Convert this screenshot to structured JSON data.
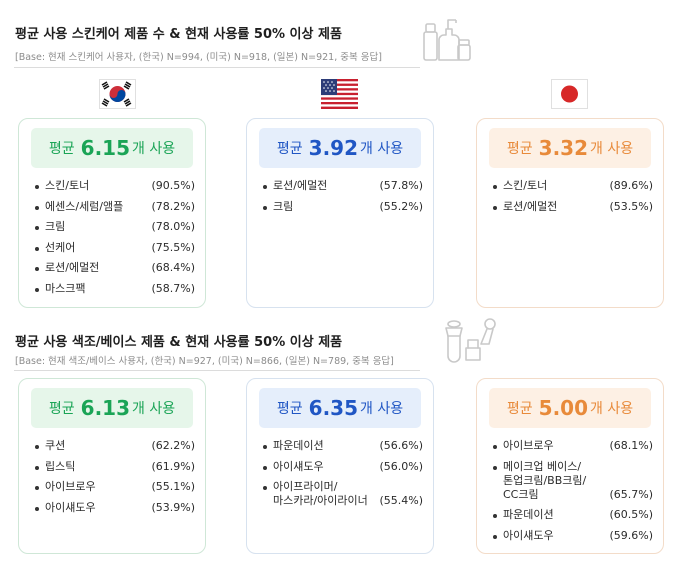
{
  "skincare": {
    "title": "평균 사용 스킨케어 제품 수 & 현재 사용률 50% 이상 제품",
    "base": "[Base: 현재 스킨케어 사용자, (한국) N=994, (미국) N=918, (일본) N=921, 중복 응답]",
    "korea": {
      "avg_prefix": "평균",
      "avg_value": "6.15",
      "avg_suffix": "개 사용",
      "items": [
        {
          "label": "스킨/토너",
          "pct": "(90.5%)"
        },
        {
          "label": "에센스/세럼/앰플",
          "pct": "(78.2%)"
        },
        {
          "label": "크림",
          "pct": "(78.0%)"
        },
        {
          "label": "선케어",
          "pct": "(75.5%)"
        },
        {
          "label": "로션/에멀전",
          "pct": "(68.4%)"
        },
        {
          "label": "마스크팩",
          "pct": "(58.7%)"
        }
      ]
    },
    "usa": {
      "avg_prefix": "평균",
      "avg_value": "3.92",
      "avg_suffix": "개 사용",
      "items": [
        {
          "label": "로션/에멀전",
          "pct": "(57.8%)"
        },
        {
          "label": "크림",
          "pct": "(55.2%)"
        }
      ]
    },
    "japan": {
      "avg_prefix": "평균",
      "avg_value": "3.32",
      "avg_suffix": "개 사용",
      "items": [
        {
          "label": "스킨/토너",
          "pct": "(89.6%)"
        },
        {
          "label": "로션/에멀전",
          "pct": "(53.5%)"
        }
      ]
    }
  },
  "makeup": {
    "title": "평균 사용 색조/베이스 제품 & 현재 사용률 50% 이상 제품",
    "base": "[Base: 현재 색조/베이스 사용자, (한국) N=927, (미국) N=866, (일본) N=789, 중복 응답]",
    "korea": {
      "avg_prefix": "평균",
      "avg_value": "6.13",
      "avg_suffix": "개 사용",
      "items": [
        {
          "label": "쿠션",
          "pct": "(62.2%)"
        },
        {
          "label": "립스틱",
          "pct": "(61.9%)"
        },
        {
          "label": "아이브로우",
          "pct": "(55.1%)"
        },
        {
          "label": "아이섀도우",
          "pct": "(53.9%)"
        }
      ]
    },
    "usa": {
      "avg_prefix": "평균",
      "avg_value": "6.35",
      "avg_suffix": "개 사용",
      "items": [
        {
          "label": "파운데이션",
          "pct": "(56.6%)"
        },
        {
          "label": "아이섀도우",
          "pct": "(56.0%)"
        },
        {
          "label": "아이프라이머/\n마스카라/아이라이너",
          "pct": "(55.4%)"
        }
      ]
    },
    "japan": {
      "avg_prefix": "평균",
      "avg_value": "5.00",
      "avg_suffix": "개 사용",
      "items": [
        {
          "label": "아이브로우",
          "pct": "(68.1%)"
        },
        {
          "label": "메이크업 베이스/\n톤업크림/BB크림/\nCC크림",
          "pct": "(65.7%)"
        },
        {
          "label": "파운데이션",
          "pct": "(60.5%)"
        },
        {
          "label": "아이섀도우",
          "pct": "(59.6%)"
        }
      ]
    }
  },
  "colors": {
    "korea": "#1aa456",
    "usa": "#2056c4",
    "japan": "#e88a3a"
  },
  "icons": {
    "skincare": "skincare-bottles-icon",
    "makeup": "makeup-tools-icon",
    "flag_korea": "korea-flag-icon",
    "flag_usa": "usa-flag-icon",
    "flag_japan": "japan-flag-icon"
  }
}
